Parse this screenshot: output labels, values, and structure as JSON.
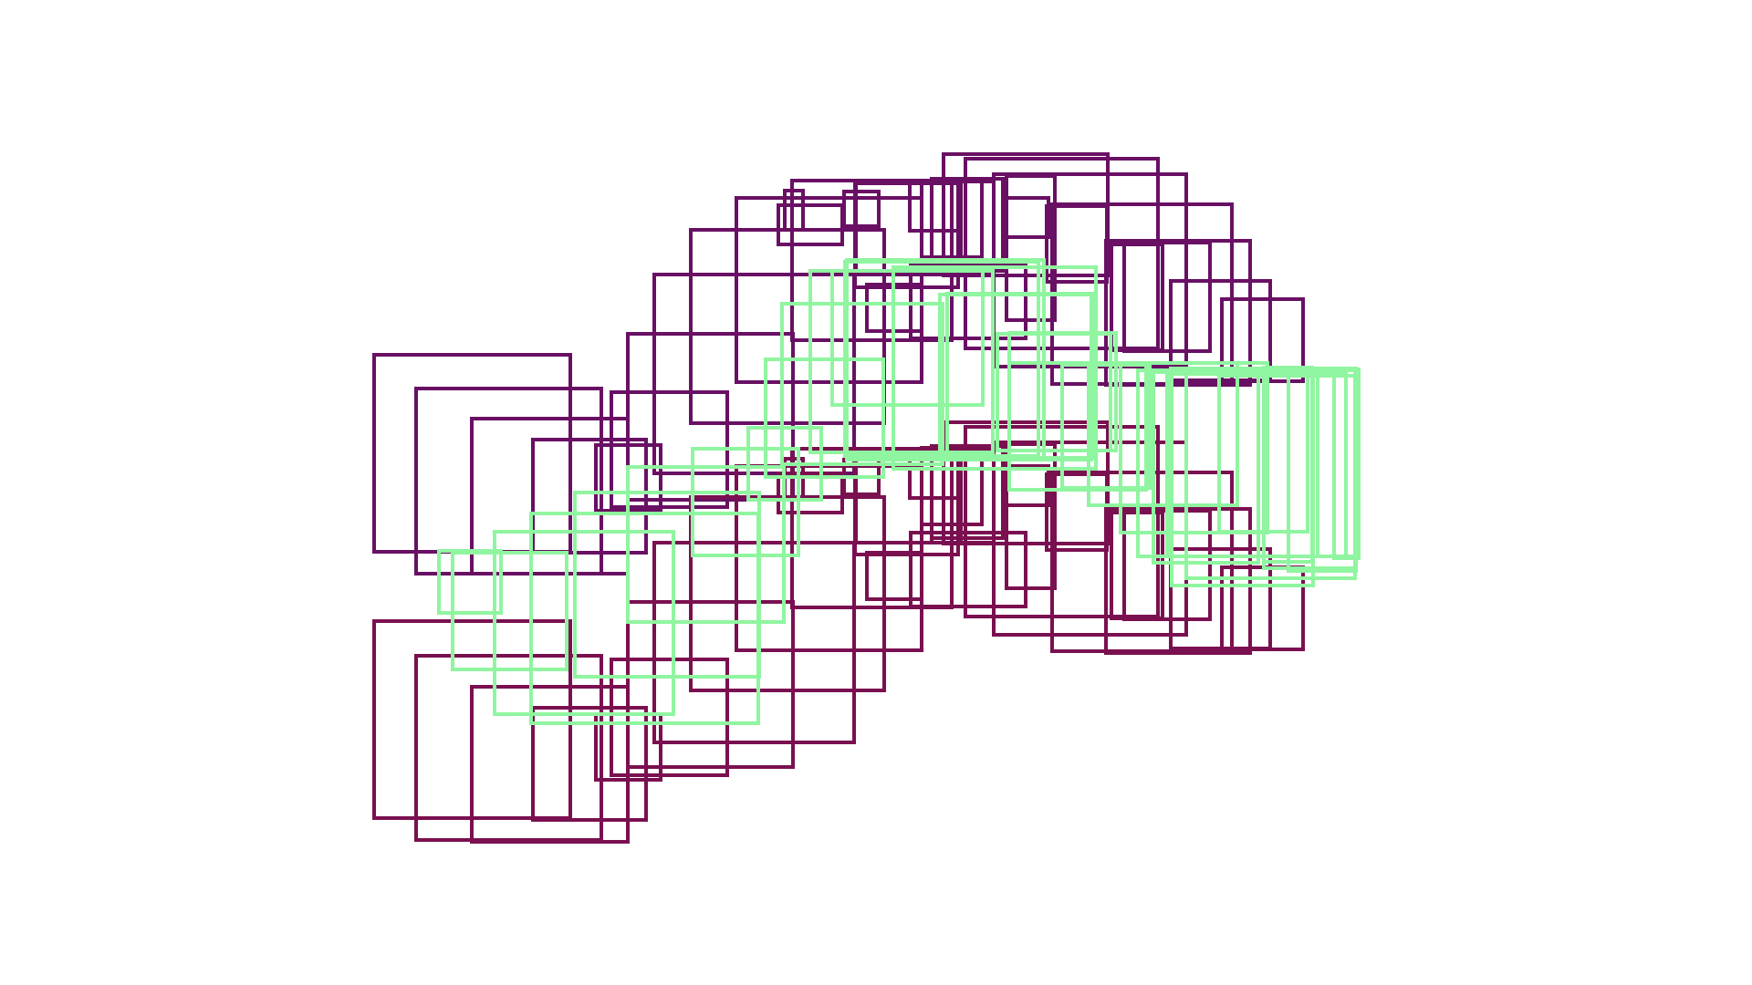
{
  "colors": {
    "background": "#ffffff",
    "purple": "#691064",
    "crimson": "#7a1050",
    "mint": "#90f5a0"
  },
  "layers": [
    {
      "name": "purple-squares-layer",
      "color_key": "purple",
      "count": 34
    },
    {
      "name": "crimson-squares-layer",
      "color_key": "crimson",
      "count": 34
    },
    {
      "name": "mint-squares-layer",
      "color_key": "mint",
      "count": 34
    }
  ]
}
